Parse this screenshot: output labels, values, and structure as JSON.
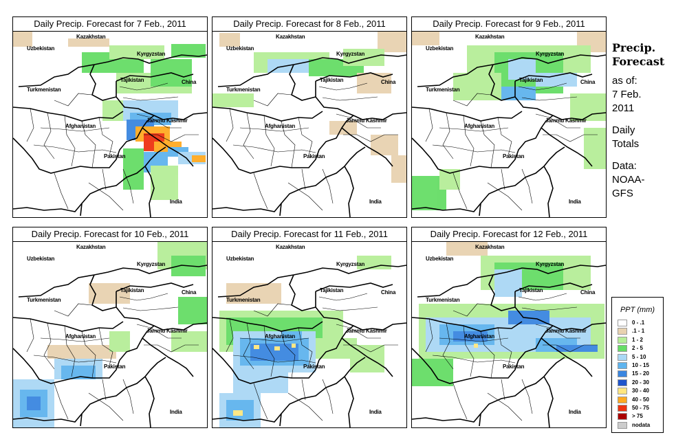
{
  "panels": [
    {
      "title": "Daily Precip. Forecast for  7 Feb., 2011"
    },
    {
      "title": "Daily Precip. Forecast for  8 Feb., 2011"
    },
    {
      "title": "Daily Precip. Forecast for  9 Feb., 2011"
    },
    {
      "title": "Daily Precip. Forecast for  10 Feb., 2011"
    },
    {
      "title": "Daily Precip. Forecast for  11 Feb., 2011"
    },
    {
      "title": "Daily Precip. Forecast for  12 Feb., 2011"
    }
  ],
  "map_labels": {
    "kazakhstan": "Kazakhstan",
    "uzbekistan": "Uzbekistan",
    "kyrgyzstan": "Kyrgyzstan",
    "tajikistan": "Tajikistan",
    "china": "China",
    "turkmenistan": "Turkmenistan",
    "afghanistan": "Afghanistan",
    "jammu_kashmir": "Jammu Kashmir",
    "pakistan": "Pakistan",
    "india": "India"
  },
  "side": {
    "heading1": "Precip.",
    "heading2": "Forecast",
    "asof": "as of:",
    "date1": "7 Feb.",
    "date2": "2011",
    "daily1": "Daily",
    "daily2": "Totals",
    "data1": "Data:",
    "data2": "NOAA-",
    "data3": "GFS"
  },
  "legend": {
    "title": "PPT (mm)",
    "items": [
      {
        "label": "0 - .1",
        "color": "#ffffff"
      },
      {
        "label": ".1 - 1",
        "color": "#e8d2b0"
      },
      {
        "label": "1 - 2",
        "color": "#b6ee98"
      },
      {
        "label": "2 - 5",
        "color": "#66dd66"
      },
      {
        "label": "5 - 10",
        "color": "#aad8f5"
      },
      {
        "label": "10 - 15",
        "color": "#5fb4ee"
      },
      {
        "label": "15 - 20",
        "color": "#3a86e0"
      },
      {
        "label": "20 - 30",
        "color": "#1f55cc"
      },
      {
        "label": "30 - 40",
        "color": "#ffe680"
      },
      {
        "label": "40 - 50",
        "color": "#ffaa22"
      },
      {
        "label": "50 - 75",
        "color": "#ee3311"
      },
      {
        "label": "> 75",
        "color": "#aa0000"
      },
      {
        "label": "nodata",
        "color": "#cccccc"
      }
    ]
  }
}
